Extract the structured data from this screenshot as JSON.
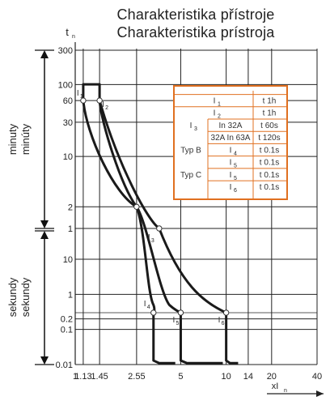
{
  "title": "Charakteristika přístroje",
  "subtitle": "Charakteristika prístroja",
  "y_axis_top_label": "t",
  "y_axis_top_sub": "n",
  "x_axis_label": "xI",
  "x_axis_sub": "n",
  "y_group_minutes": [
    "minuty",
    "minúty"
  ],
  "y_group_seconds": [
    "sekundy",
    "sekundy"
  ],
  "colors": {
    "accent": "#e07020",
    "curve": "#1a1a1a",
    "grid": "#222222"
  },
  "chart_data": {
    "type": "line",
    "x_scale": "log",
    "y_scale": "log-segmented",
    "xlim": [
      1,
      40
    ],
    "x_ticks": [
      {
        "value": 1,
        "label": "1"
      },
      {
        "value": 1.13,
        "label": "1.13"
      },
      {
        "value": 1.45,
        "label": "1.45"
      },
      {
        "value": 2.55,
        "label": "2.55"
      },
      {
        "value": 5,
        "label": "5"
      },
      {
        "value": 10,
        "label": "10"
      },
      {
        "value": 14,
        "label": "14"
      },
      {
        "value": 20,
        "label": "20"
      },
      {
        "value": 40,
        "label": "40"
      }
    ],
    "y_ticks_minutes": [
      {
        "value": 300,
        "label": "300"
      },
      {
        "value": 100,
        "label": "100"
      },
      {
        "value": 60,
        "label": "60"
      },
      {
        "value": 30,
        "label": "30"
      },
      {
        "value": 10,
        "label": "10"
      },
      {
        "value": 2,
        "label": "2"
      },
      {
        "value": 1,
        "label": "1"
      }
    ],
    "y_ticks_seconds": [
      {
        "value": 10,
        "label": "10"
      },
      {
        "value": 1,
        "label": "1"
      },
      {
        "value": 0.2,
        "label": "0.2"
      },
      {
        "value": 0.1,
        "label": "0.1"
      },
      {
        "value": 0.01,
        "label": "0.01"
      }
    ],
    "series": [
      {
        "points": [
          [
            1.13,
            60
          ],
          [
            1.45,
            60
          ],
          [
            2.55,
            2
          ],
          [
            2.55,
            1
          ],
          [
            5,
            0.3
          ],
          [
            5,
            0.01
          ]
        ]
      },
      {
        "points": [
          [
            1.45,
            60
          ],
          [
            2.55,
            2
          ],
          [
            5,
            1
          ],
          [
            10,
            0.3
          ],
          [
            10,
            0.01
          ]
        ]
      }
    ],
    "point_labels": [
      {
        "label": "I",
        "sub": "1",
        "x": 1.13,
        "y_unit": "min",
        "y": 60
      },
      {
        "label": "I",
        "sub": "2",
        "x": 1.45,
        "y_unit": "min",
        "y": 60
      },
      {
        "label": "I",
        "sub": "3",
        "x": 2.55,
        "y_unit": "min",
        "y": 1
      },
      {
        "label": "I",
        "sub": "4",
        "x": 3.3,
        "y_unit": "s",
        "y": 0.3
      },
      {
        "label": "I",
        "sub": "5",
        "x": 5,
        "y_unit": "s",
        "y": 0.3
      },
      {
        "label": "I",
        "sub": "6",
        "x": 10,
        "y_unit": "s",
        "y": 0.3
      }
    ],
    "table": {
      "rows": [
        {
          "group": "",
          "current": "I",
          "current_sub": "1",
          "time": "t  1h"
        },
        {
          "group": "",
          "current": "I",
          "current_sub": "2",
          "time": "t  1h"
        },
        {
          "group": "I",
          "group_sub": "3",
          "current": "In  32A",
          "time": "t  60s"
        },
        {
          "group": "",
          "current": "32A In 63A",
          "time": "t  120s"
        },
        {
          "group": "Typ B",
          "current": "I",
          "current_sub": "4",
          "time": "t  0.1s"
        },
        {
          "group": "",
          "current": "I",
          "current_sub": "5",
          "time": "t  0.1s"
        },
        {
          "group": "Typ C",
          "current": "I",
          "current_sub": "5",
          "time": "t  0.1s"
        },
        {
          "group": "",
          "current": "I",
          "current_sub": "6",
          "time": "t  0.1s"
        }
      ]
    }
  }
}
